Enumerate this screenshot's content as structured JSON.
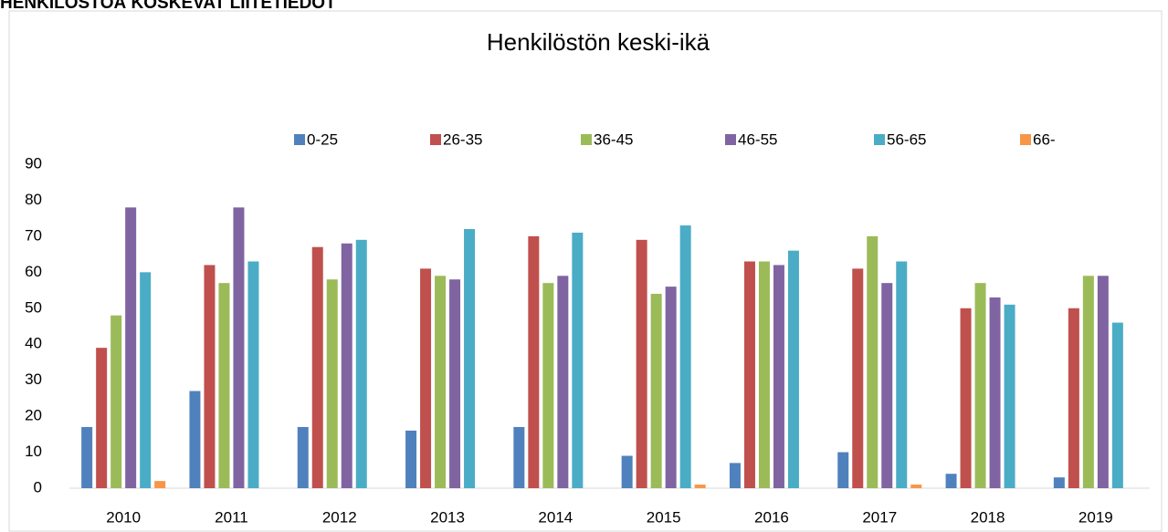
{
  "heading": "HENKILÖSTÖÄ KOSKEVAT LIITETIEDOT",
  "chart_data": {
    "type": "bar",
    "title": "Henkilöstön keski-ikä",
    "categories": [
      "2010",
      "2011",
      "2012",
      "2013",
      "2014",
      "2015",
      "2016",
      "2017",
      "2018",
      "2019"
    ],
    "series": [
      {
        "name": "0-25",
        "color": "#4f81bd",
        "values": [
          17,
          27,
          17,
          16,
          17,
          9,
          7,
          10,
          4,
          3
        ]
      },
      {
        "name": "26-35",
        "color": "#c0504d",
        "values": [
          39,
          62,
          67,
          61,
          70,
          69,
          63,
          61,
          50,
          50
        ]
      },
      {
        "name": "36-45",
        "color": "#9bbb59",
        "values": [
          48,
          57,
          58,
          59,
          57,
          54,
          63,
          70,
          57,
          59
        ]
      },
      {
        "name": "46-55",
        "color": "#8064a2",
        "values": [
          78,
          78,
          68,
          58,
          59,
          56,
          62,
          57,
          53,
          59
        ]
      },
      {
        "name": "56-65",
        "color": "#4bacc6",
        "values": [
          60,
          63,
          69,
          72,
          71,
          73,
          66,
          63,
          51,
          46
        ]
      },
      {
        "name": "66-",
        "color": "#f79646",
        "values": [
          2,
          0,
          0,
          0,
          0,
          1,
          0,
          1,
          0,
          0
        ]
      }
    ],
    "ylim": [
      0,
      90
    ],
    "yticks": [
      0,
      10,
      20,
      30,
      40,
      50,
      60,
      70,
      80,
      90
    ],
    "grid": false,
    "legend": "top"
  }
}
